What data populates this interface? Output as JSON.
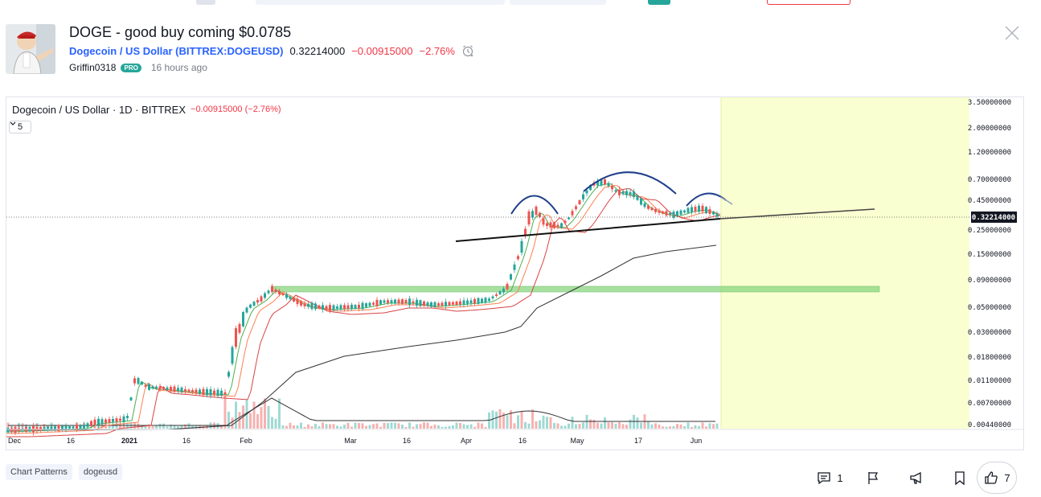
{
  "idea": {
    "title": "DOGE - good buy coming $0.0785",
    "symbol_link": "Dogecoin / US Dollar (BITTREX:DOGEUSD)",
    "price": "0.32214000",
    "change": "−0.00915000",
    "change_pct": "−2.76%",
    "author": "Griffin0318",
    "badge": "PRO",
    "time_ago": "16 hours ago"
  },
  "chart": {
    "legend_symbol": "Dogecoin / US Dollar · 1D · BITTREX",
    "legend_change": "−0.00915000 (−2.76%)",
    "collapse_label": "5",
    "last_price_label": "0.32214000",
    "price_labels": [
      "3.50000000",
      "2.00000000",
      "1.20000000",
      "0.70000000",
      "0.45000000",
      "0.25000000",
      "0.15000000",
      "0.09000000",
      "0.05000000",
      "0.03000000",
      "0.01800000",
      "0.01100000",
      "0.00700000",
      "0.00440000"
    ],
    "time_labels": [
      "Dec",
      "16",
      "2021",
      "16",
      "Feb",
      "Mar",
      "16",
      "Apr",
      "16",
      "May",
      "17",
      "Jun"
    ],
    "colors": {
      "up": "#26a69a",
      "down": "#ef5350",
      "ma_green": "#4caf50",
      "ma_orange": "#ff7f50",
      "ma_red": "#d84343",
      "ma_black": "#333333",
      "pattern": "#1e3f8a",
      "zone": "#8bd67f",
      "projection": "#faffd1"
    }
  },
  "tags": [
    "Chart Patterns",
    "dogeusd"
  ],
  "actions": {
    "comments_count": "1",
    "boosts_count": "7"
  }
}
